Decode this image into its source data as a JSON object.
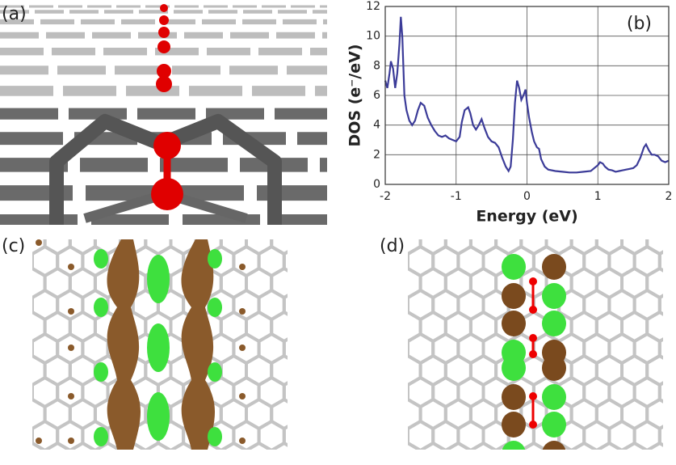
{
  "panels": [
    "(a)",
    "(c)",
    "(d)"
  ],
  "chart_data": {
    "type": "line",
    "panel_label": "(b)",
    "xlabel": "Energy (eV)",
    "ylabel": "DOS (e⁻/eV)",
    "x": [
      -2.0,
      -1.97,
      -1.94,
      -1.92,
      -1.89,
      -1.86,
      -1.83,
      -1.8,
      -1.78,
      -1.76,
      -1.73,
      -1.7,
      -1.66,
      -1.62,
      -1.58,
      -1.54,
      -1.5,
      -1.45,
      -1.4,
      -1.35,
      -1.3,
      -1.25,
      -1.2,
      -1.15,
      -1.1,
      -1.05,
      -1.0,
      -0.95,
      -0.92,
      -0.88,
      -0.83,
      -0.8,
      -0.76,
      -0.72,
      -0.68,
      -0.64,
      -0.6,
      -0.55,
      -0.5,
      -0.45,
      -0.4,
      -0.35,
      -0.3,
      -0.26,
      -0.23,
      -0.2,
      -0.17,
      -0.14,
      -0.11,
      -0.08,
      -0.05,
      -0.02,
      0.0,
      0.03,
      0.07,
      0.1,
      0.14,
      0.17,
      0.2,
      0.25,
      0.3,
      0.4,
      0.5,
      0.6,
      0.7,
      0.8,
      0.9,
      0.95,
      1.0,
      1.03,
      1.07,
      1.1,
      1.15,
      1.2,
      1.25,
      1.3,
      1.35,
      1.4,
      1.45,
      1.5,
      1.55,
      1.6,
      1.65,
      1.68,
      1.72,
      1.76,
      1.8,
      1.85,
      1.9,
      1.95,
      2.0
    ],
    "values": [
      7.0,
      6.5,
      7.5,
      8.3,
      7.8,
      6.5,
      7.5,
      9.5,
      11.3,
      10.0,
      6.0,
      5.0,
      4.3,
      4.0,
      4.3,
      5.0,
      5.5,
      5.3,
      4.5,
      4.0,
      3.6,
      3.3,
      3.2,
      3.3,
      3.1,
      3.0,
      2.9,
      3.2,
      4.2,
      5.0,
      5.2,
      4.8,
      4.0,
      3.7,
      4.0,
      4.4,
      3.8,
      3.2,
      2.9,
      2.8,
      2.5,
      1.8,
      1.2,
      0.9,
      1.2,
      3.0,
      5.5,
      7.0,
      6.5,
      5.7,
      6.0,
      6.4,
      5.5,
      4.5,
      3.5,
      2.9,
      2.5,
      2.4,
      1.7,
      1.2,
      1.0,
      0.9,
      0.85,
      0.8,
      0.8,
      0.85,
      0.9,
      1.1,
      1.3,
      1.5,
      1.4,
      1.2,
      1.0,
      0.95,
      0.85,
      0.9,
      0.95,
      1.0,
      1.05,
      1.1,
      1.3,
      1.8,
      2.5,
      2.7,
      2.3,
      2.0,
      2.0,
      1.9,
      1.6,
      1.5,
      1.6
    ],
    "color": "#3b3b98",
    "xlim": [
      -2,
      2
    ],
    "ylim": [
      0,
      12
    ],
    "xticks": [
      -2,
      -1,
      0,
      1,
      2
    ],
    "yticks": [
      0,
      2,
      4,
      6,
      8,
      10,
      12
    ],
    "grid": true
  }
}
